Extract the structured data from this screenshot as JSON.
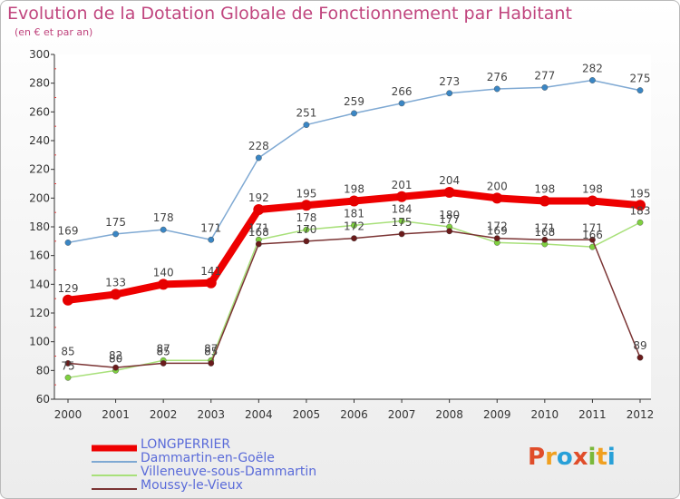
{
  "title": "Evolution de la Dotation Globale de Fonctionnement par Habitant",
  "subtitle": "(en € et par an)",
  "brand": {
    "letters": [
      {
        "char": "P",
        "color": "#e04d2a"
      },
      {
        "char": "r",
        "color": "#f0a020"
      },
      {
        "char": "o",
        "color": "#28a0d8"
      },
      {
        "char": "x",
        "color": "#e04d2a"
      },
      {
        "char": "i",
        "color": "#7ab83a"
      },
      {
        "char": "t",
        "color": "#f0a020"
      },
      {
        "char": "i",
        "color": "#28a0d8"
      }
    ]
  },
  "chart_data": {
    "type": "line",
    "title": "Evolution de la Dotation Globale de Fonctionnement par Habitant",
    "ylabel": "(en € et par an)",
    "xlabel": "",
    "ylim": [
      60,
      300
    ],
    "yticks": [
      60,
      80,
      100,
      120,
      140,
      160,
      180,
      200,
      220,
      240,
      260,
      280,
      300
    ],
    "x": [
      "2000",
      "2001",
      "2002",
      "2003",
      "2004",
      "2005",
      "2006",
      "2007",
      "2008",
      "2009",
      "2010",
      "2011",
      "2012"
    ],
    "grid": false,
    "legend_position": "bottom-left",
    "series": [
      {
        "name": "LONGPERRIER",
        "color": "#ee0000",
        "marker": "#e60000",
        "emphasis": true,
        "values": [
          129,
          133,
          140,
          141,
          192,
          195,
          198,
          201,
          204,
          200,
          198,
          198,
          195
        ]
      },
      {
        "name": "Dammartin-en-Goële",
        "color": "#7fa9d3",
        "marker": "#3a86c4",
        "emphasis": false,
        "values": [
          169,
          175,
          178,
          171,
          228,
          251,
          259,
          266,
          273,
          276,
          277,
          282,
          275
        ]
      },
      {
        "name": "Villeneuve-sous-Dammartin",
        "color": "#a8e07a",
        "marker": "#7fd040",
        "emphasis": false,
        "values": [
          75,
          80,
          87,
          87,
          171,
          178,
          181,
          184,
          180,
          169,
          168,
          166,
          183
        ]
      },
      {
        "name": "Moussy-le-Vieux",
        "color": "#7b3434",
        "marker": "#6a1b1b",
        "emphasis": false,
        "values": [
          85,
          82,
          85,
          85,
          168,
          170,
          172,
          175,
          177,
          172,
          171,
          171,
          89
        ]
      }
    ],
    "data_labels": [
      {
        "series": 0,
        "labels": [
          "129",
          "133",
          "140",
          "141",
          "192",
          "195",
          "198",
          "201",
          "204",
          "200",
          "198",
          "198",
          "195"
        ]
      },
      {
        "series": 1,
        "labels": [
          "169",
          "175",
          "178",
          "171",
          "228",
          "251",
          "259",
          "266",
          "273",
          "276",
          "277",
          "282",
          "275"
        ]
      },
      {
        "series": 2,
        "labels": [
          "75",
          "80",
          "87",
          "87",
          "171",
          "178",
          "181",
          "184",
          "180",
          "169",
          "168",
          "166",
          "183"
        ]
      },
      {
        "series": 3,
        "labels": [
          "85",
          "82",
          "85",
          "85",
          "168",
          "170",
          "172",
          "175",
          "177",
          "172",
          "171",
          "171",
          "89"
        ]
      }
    ]
  }
}
